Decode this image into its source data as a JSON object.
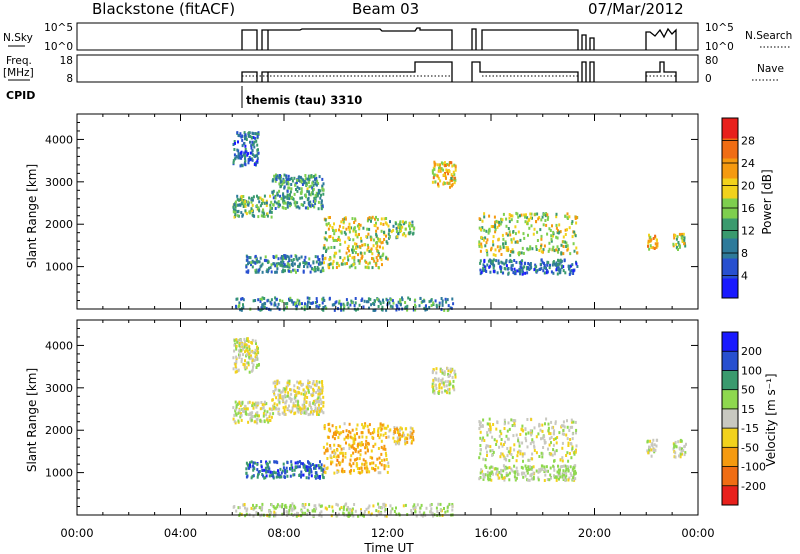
{
  "header": {
    "station": "Blackstone (fitACF)",
    "beam": "Beam 03",
    "date": "07/Mar/2012"
  },
  "housekeeping": {
    "nsky_label": "N.Sky",
    "nsky_ticks": [
      "10^5",
      "10^0"
    ],
    "nsearch_label": "N.Search",
    "freq_label_1": "Freq.",
    "freq_label_2": "[MHz]",
    "freq_ticks": [
      "18",
      "8"
    ],
    "nave_label": "Nave",
    "nave_ticks": [
      "80",
      "0"
    ],
    "cpid_label": "CPID",
    "cpid_text": "themis (tau) 3310"
  },
  "chart_data": [
    {
      "type": "heatmap",
      "title": "",
      "quantity": "Power",
      "xlabel": "",
      "ylabel": "Slant Range [km]",
      "x_range_hours": [
        0,
        24
      ],
      "xticks": [
        "00:00",
        "04:00",
        "08:00",
        "12:00",
        "16:00",
        "20:00",
        "00:00"
      ],
      "ylim_km": [
        0,
        4600
      ],
      "yticks": [
        1000,
        2000,
        3000,
        4000
      ],
      "colorbar": {
        "label": "Power [dB]",
        "ticks": [
          "4",
          "8",
          "12",
          "16",
          "20",
          "24",
          "28"
        ],
        "range": [
          0,
          32
        ],
        "colors": [
          "#1a1aff",
          "#2850d0",
          "#2e7a9a",
          "#3a9a6e",
          "#7ecf4e",
          "#f2d21c",
          "#f59a10",
          "#f06d14",
          "#e8201c"
        ]
      },
      "echo_regions": [
        {
          "t_start": 6.0,
          "t_end": 7.5,
          "range_start": 2200,
          "range_end": 2700,
          "value": 14
        },
        {
          "t_start": 6.0,
          "t_end": 7.0,
          "range_start": 3400,
          "range_end": 4200,
          "value": 8
        },
        {
          "t_start": 7.5,
          "t_end": 9.5,
          "range_start": 2400,
          "range_end": 3200,
          "value": 12
        },
        {
          "t_start": 6.5,
          "t_end": 9.5,
          "range_start": 900,
          "range_end": 1300,
          "value": 10
        },
        {
          "t_start": 9.5,
          "t_end": 12.0,
          "range_start": 1000,
          "range_end": 2200,
          "value": 18
        },
        {
          "t_start": 12.0,
          "t_end": 13.0,
          "range_start": 1700,
          "range_end": 2100,
          "value": 14
        },
        {
          "t_start": 13.7,
          "t_end": 14.6,
          "range_start": 2900,
          "range_end": 3500,
          "value": 20
        },
        {
          "t_start": 15.5,
          "t_end": 19.3,
          "range_start": 1300,
          "range_end": 2300,
          "value": 18
        },
        {
          "t_start": 15.5,
          "t_end": 19.3,
          "range_start": 850,
          "range_end": 1200,
          "value": 8
        },
        {
          "t_start": 22.0,
          "t_end": 22.4,
          "range_start": 1400,
          "range_end": 1800,
          "value": 22
        },
        {
          "t_start": 23.0,
          "t_end": 23.5,
          "range_start": 1400,
          "range_end": 1800,
          "value": 18
        },
        {
          "t_start": 6.0,
          "t_end": 14.5,
          "range_start": 0,
          "range_end": 300,
          "value": 10
        }
      ]
    },
    {
      "type": "heatmap",
      "title": "",
      "quantity": "Velocity",
      "xlabel": "Time UT",
      "ylabel": "Slant Range [km]",
      "x_range_hours": [
        0,
        24
      ],
      "xticks": [
        "00:00",
        "04:00",
        "08:00",
        "12:00",
        "16:00",
        "20:00",
        "00:00"
      ],
      "ylim_km": [
        0,
        4600
      ],
      "yticks": [
        1000,
        2000,
        3000,
        4000
      ],
      "colorbar": {
        "label": "Velocity [m s⁻¹]",
        "ticks": [
          "200",
          "100",
          "50",
          "15",
          "-15",
          "-50",
          "-100",
          "-200"
        ],
        "range": [
          -250,
          250
        ],
        "colors": [
          "#e8201c",
          "#f06d14",
          "#f59a10",
          "#f2d21c",
          "#c8c8c0",
          "#8ed84e",
          "#3a9a6e",
          "#2850d0",
          "#1a1aff"
        ]
      },
      "echo_regions": [
        {
          "t_start": 6.0,
          "t_end": 7.5,
          "range_start": 2200,
          "range_end": 2700,
          "value": 0
        },
        {
          "t_start": 6.0,
          "t_end": 7.0,
          "range_start": 3400,
          "range_end": 4200,
          "value": 0
        },
        {
          "t_start": 7.5,
          "t_end": 9.5,
          "range_start": 2400,
          "range_end": 3200,
          "value": -20
        },
        {
          "t_start": 6.5,
          "t_end": 9.5,
          "range_start": 900,
          "range_end": 1300,
          "value": 150
        },
        {
          "t_start": 9.5,
          "t_end": 12.0,
          "range_start": 1000,
          "range_end": 2200,
          "value": -80
        },
        {
          "t_start": 12.0,
          "t_end": 13.0,
          "range_start": 1700,
          "range_end": 2100,
          "value": -60
        },
        {
          "t_start": 13.7,
          "t_end": 14.6,
          "range_start": 2900,
          "range_end": 3500,
          "value": 0
        },
        {
          "t_start": 15.5,
          "t_end": 19.3,
          "range_start": 1300,
          "range_end": 2300,
          "value": 0
        },
        {
          "t_start": 15.5,
          "t_end": 19.3,
          "range_start": 850,
          "range_end": 1200,
          "value": 20
        },
        {
          "t_start": 22.0,
          "t_end": 22.4,
          "range_start": 1400,
          "range_end": 1800,
          "value": 0
        },
        {
          "t_start": 23.0,
          "t_end": 23.5,
          "range_start": 1400,
          "range_end": 1800,
          "value": 0
        },
        {
          "t_start": 6.0,
          "t_end": 14.5,
          "range_start": 0,
          "range_end": 300,
          "value": 20
        }
      ]
    }
  ]
}
